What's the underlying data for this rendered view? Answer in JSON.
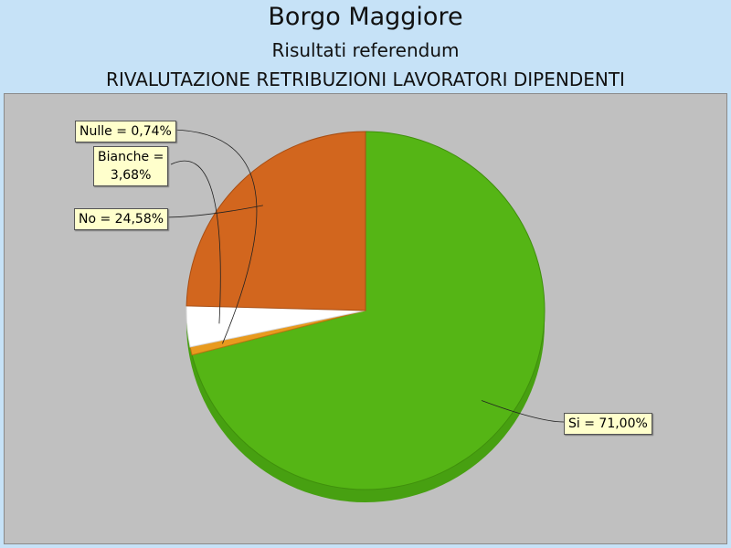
{
  "header": {
    "title": "Borgo Maggiore",
    "subtitle": "Risultati referendum",
    "question": "RIVALUTAZIONE RETRIBUZIONI LAVORATORI DIPENDENTI"
  },
  "chart_data": {
    "type": "pie",
    "title": "Borgo Maggiore",
    "subtitle": "Risultati referendum",
    "slices": [
      {
        "name": "Si",
        "value": 71.0,
        "label": "Si = 71,00%",
        "color": "#55b515",
        "dark": "#3f8f0c"
      },
      {
        "name": "Nulle",
        "value": 0.74,
        "label": "Nulle = 0,74%",
        "color": "#e89a1e",
        "dark": "#b87510"
      },
      {
        "name": "Bianche",
        "value": 3.68,
        "label": "Bianche = 3,68%",
        "label_lines": [
          "Bianche =",
          "3,68%"
        ],
        "color": "#ffffff",
        "dark": "#d8d8d8"
      },
      {
        "name": "No",
        "value": 24.58,
        "label": "No = 24,58%",
        "color": "#d2661e",
        "dark": "#a84d12"
      }
    ],
    "background": "#c0c0c0",
    "legend": "none"
  }
}
